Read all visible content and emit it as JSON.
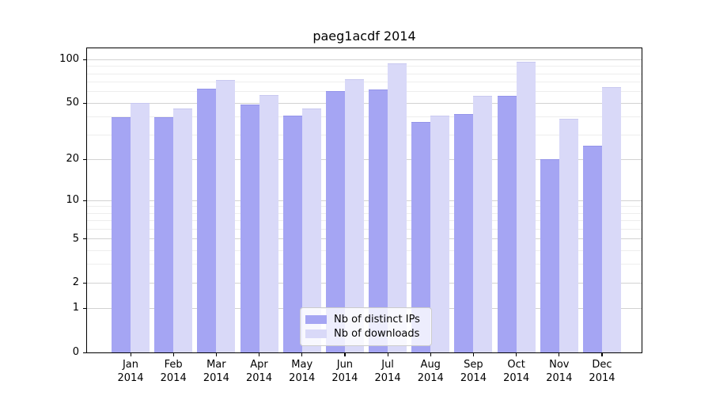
{
  "figure": {
    "title": "paeg1acdf 2014"
  },
  "chart_data": {
    "type": "bar",
    "title": "paeg1acdf 2014",
    "categories": [
      "Jan",
      "Feb",
      "Mar",
      "Apr",
      "May",
      "Jun",
      "Jul",
      "Aug",
      "Sep",
      "Oct",
      "Nov",
      "Dec"
    ],
    "category_year": "2014",
    "series": [
      {
        "name": "Nb of distinct IPs",
        "color": "#a5a5f3",
        "edge_color": "#9494ea",
        "values": [
          40,
          40,
          63,
          49,
          41,
          61,
          62,
          37,
          42,
          56,
          20,
          25
        ]
      },
      {
        "name": "Nb of downloads",
        "color": "#d9d9f8",
        "edge_color": "#c8c8f0",
        "values": [
          50,
          46,
          72,
          57,
          46,
          73,
          94,
          41,
          56,
          97,
          39,
          65
        ]
      }
    ],
    "yscale": "log10(value+1)",
    "ylim": [
      0,
      120
    ],
    "y_major_ticks": [
      0,
      1,
      2,
      5,
      10,
      20,
      50,
      100
    ],
    "y_minor_gridlines": [
      3,
      4,
      6,
      7,
      8,
      9,
      30,
      40,
      60,
      70,
      80,
      90
    ],
    "grid": true,
    "legend_position": "lower center",
    "colors": {
      "major_grid": "#d2d2d2",
      "minor_grid": "#ededed",
      "spine": "#000000",
      "background": "#ffffff"
    }
  }
}
